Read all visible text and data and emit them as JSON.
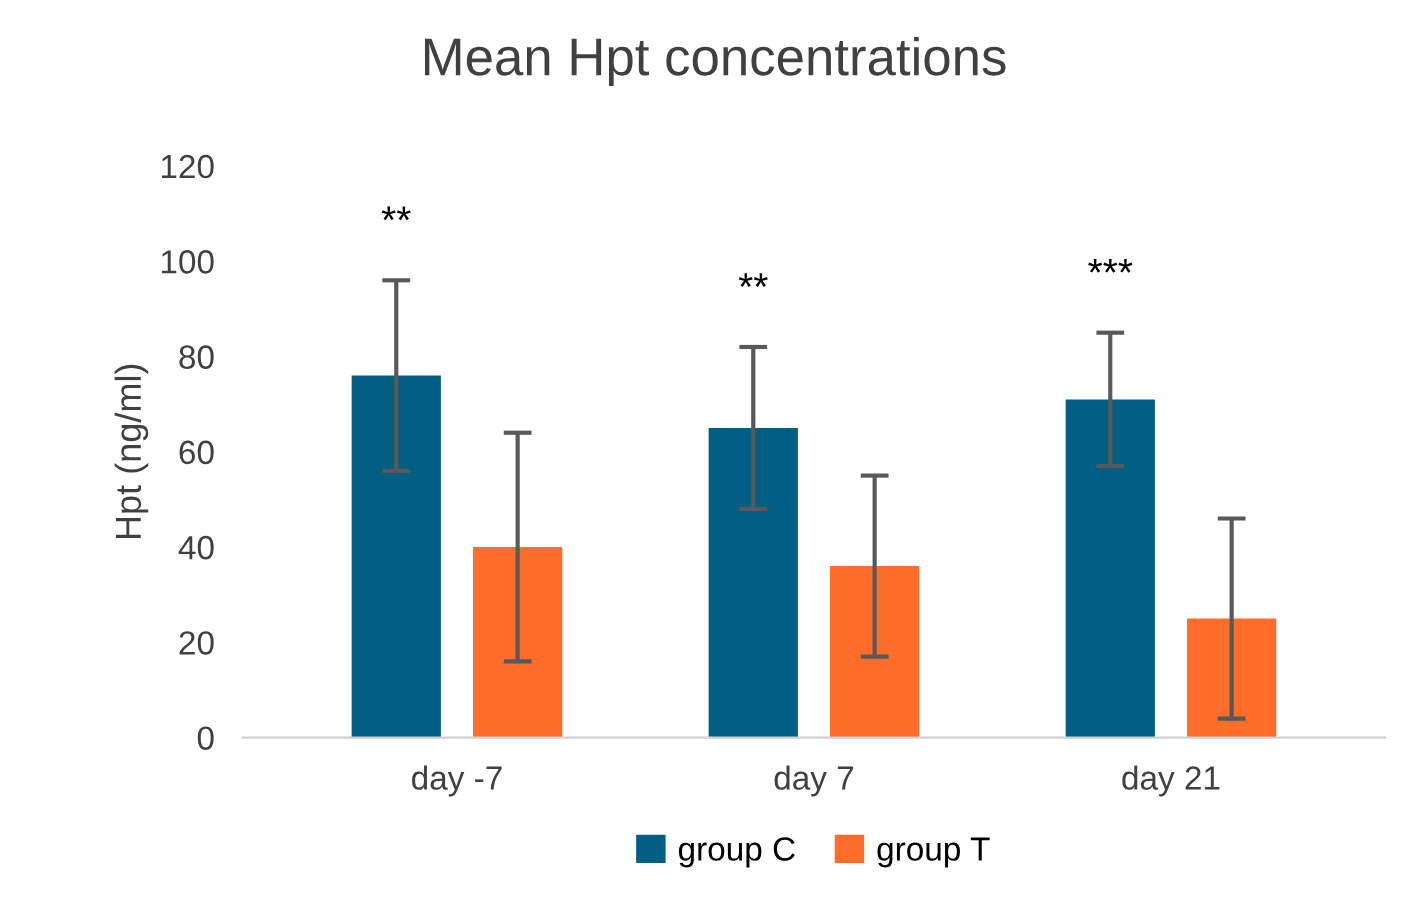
{
  "chart_data": {
    "type": "bar",
    "title": "Mean Hpt concentrations",
    "ylabel": "Hpt (ng/ml)",
    "categories": [
      "day -7",
      "day 7",
      "day 21"
    ],
    "series": [
      {
        "name": "group C",
        "color": "#005f83",
        "values": [
          76,
          65,
          71
        ],
        "errors": [
          20,
          17,
          14
        ]
      },
      {
        "name": "group T",
        "color": "#ff6d2a",
        "values": [
          40,
          36,
          25
        ],
        "errors": [
          24,
          19,
          21
        ]
      }
    ],
    "annotations": [
      "**",
      "**",
      "***"
    ],
    "ylim": [
      0,
      120
    ],
    "yticks": [
      0,
      20,
      40,
      60,
      80,
      100,
      120
    ],
    "grid": false,
    "legend": "bottom"
  }
}
